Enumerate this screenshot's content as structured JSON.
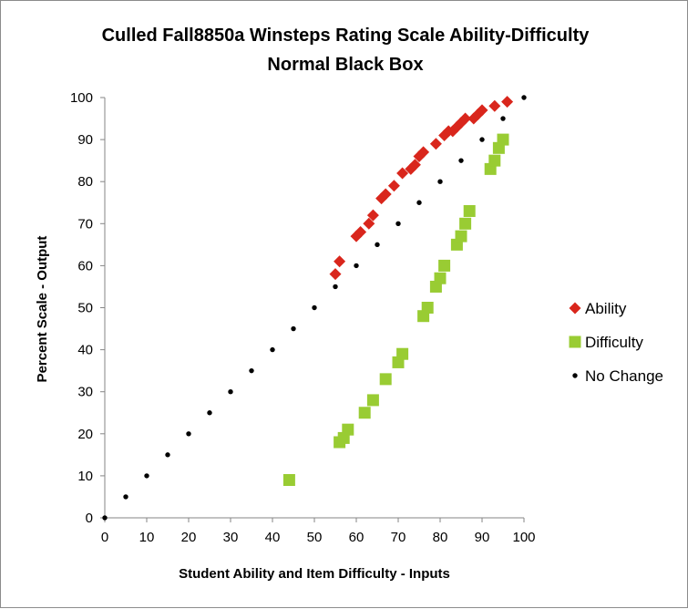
{
  "chart_data": {
    "type": "scatter",
    "title": "Culled Fall8850a Winsteps Rating Scale Ability-Difficulty",
    "subtitle": "Normal Black Box",
    "xlabel": "Student Ability and Item Difficulty - Inputs",
    "ylabel": "Percent Scale - Output",
    "xlim": [
      0,
      100
    ],
    "ylim": [
      0,
      100
    ],
    "xticks": [
      0,
      10,
      20,
      30,
      40,
      50,
      60,
      70,
      80,
      90,
      100
    ],
    "yticks": [
      0,
      10,
      20,
      30,
      40,
      50,
      60,
      70,
      80,
      90,
      100
    ],
    "grid": false,
    "legend_position": "right",
    "series": [
      {
        "name": "Ability",
        "marker": "diamond",
        "color": "#d9261c",
        "points": [
          [
            55,
            58
          ],
          [
            56,
            61
          ],
          [
            60,
            67
          ],
          [
            61,
            68
          ],
          [
            63,
            70
          ],
          [
            64,
            72
          ],
          [
            66,
            76
          ],
          [
            67,
            77
          ],
          [
            69,
            79
          ],
          [
            71,
            82
          ],
          [
            73,
            83
          ],
          [
            74,
            84
          ],
          [
            75,
            86
          ],
          [
            76,
            87
          ],
          [
            79,
            89
          ],
          [
            81,
            91
          ],
          [
            82,
            92
          ],
          [
            83,
            92
          ],
          [
            84,
            93
          ],
          [
            85,
            94
          ],
          [
            86,
            95
          ],
          [
            88,
            95
          ],
          [
            89,
            96
          ],
          [
            90,
            97
          ],
          [
            93,
            98
          ],
          [
            96,
            99
          ]
        ]
      },
      {
        "name": "Difficulty",
        "marker": "square",
        "color": "#99cc33",
        "points": [
          [
            44,
            9
          ],
          [
            56,
            18
          ],
          [
            57,
            19
          ],
          [
            58,
            21
          ],
          [
            62,
            25
          ],
          [
            64,
            28
          ],
          [
            67,
            33
          ],
          [
            70,
            37
          ],
          [
            71,
            39
          ],
          [
            76,
            48
          ],
          [
            77,
            50
          ],
          [
            79,
            55
          ],
          [
            80,
            57
          ],
          [
            81,
            60
          ],
          [
            84,
            65
          ],
          [
            85,
            67
          ],
          [
            86,
            70
          ],
          [
            87,
            73
          ],
          [
            92,
            83
          ],
          [
            93,
            85
          ],
          [
            94,
            88
          ],
          [
            95,
            90
          ]
        ]
      },
      {
        "name": "No Change",
        "marker": "dot",
        "color": "#000000",
        "points": [
          [
            0,
            0
          ],
          [
            5,
            5
          ],
          [
            10,
            10
          ],
          [
            15,
            15
          ],
          [
            20,
            20
          ],
          [
            25,
            25
          ],
          [
            30,
            30
          ],
          [
            35,
            35
          ],
          [
            40,
            40
          ],
          [
            45,
            45
          ],
          [
            50,
            50
          ],
          [
            55,
            55
          ],
          [
            60,
            60
          ],
          [
            65,
            65
          ],
          [
            70,
            70
          ],
          [
            75,
            75
          ],
          [
            80,
            80
          ],
          [
            85,
            85
          ],
          [
            90,
            90
          ],
          [
            95,
            95
          ],
          [
            100,
            100
          ]
        ]
      }
    ]
  }
}
